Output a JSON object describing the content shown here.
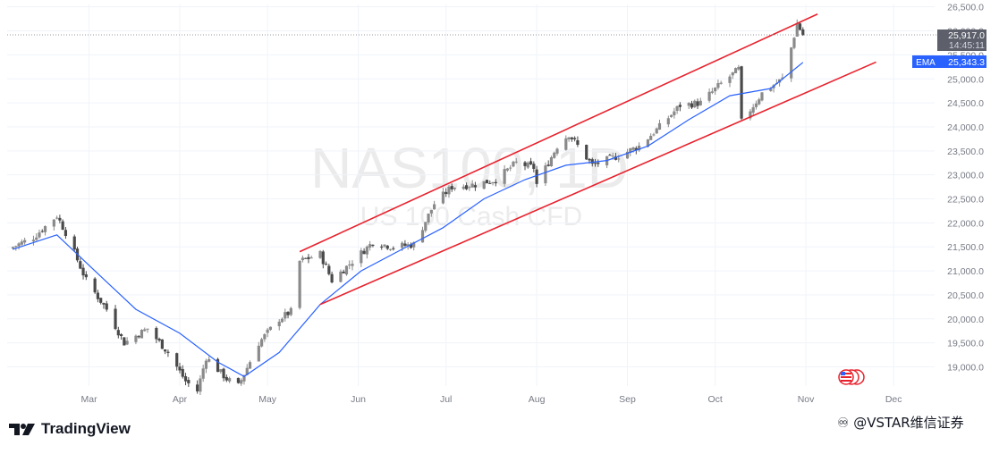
{
  "watermark": {
    "symbol": "NAS100, 1D",
    "description": "US 100 Cash CFD"
  },
  "branding": {
    "logo_text": "TradingView",
    "credit": "♾ @VSTAR维信证券"
  },
  "price_badge": {
    "price": "25,917.0",
    "countdown": "14:45:11"
  },
  "ema_badge": {
    "label": "EMA",
    "value": "25,343.3"
  },
  "colors": {
    "up": "#8a8a8a",
    "down": "#4a4a4a",
    "ema": "#2962ff",
    "channel": "#e8222d",
    "grid": "#f0f3fa",
    "axis_text": "#787b86",
    "price_badge": "#5d606b",
    "ema_badge": "#2962ff"
  },
  "chart_data": {
    "type": "candlestick",
    "symbol": "NAS100",
    "timeframe": "1D",
    "x_axis_labels": [
      "Mar",
      "Apr",
      "May",
      "Jun",
      "Jul",
      "Aug",
      "Sep",
      "Oct",
      "Nov",
      "Dec"
    ],
    "x_range": [
      "2025-02-01",
      "2025-12-15"
    ],
    "y_ticks": [
      19000,
      19500,
      20000,
      20500,
      21000,
      21500,
      22000,
      22500,
      23000,
      23500,
      24000,
      24500,
      25000,
      25500,
      26000,
      26500
    ],
    "y_tick_labels": [
      "19,000.0",
      "19,500.0",
      "20,000.0",
      "20,500.0",
      "21,000.0",
      "21,500.0",
      "22,000.0",
      "22,500.0",
      "23,000.0",
      "23,500.0",
      "24,000.0",
      "24,500.0",
      "25,000.0",
      "25,500.0",
      "26,000.0",
      "26,500.0"
    ],
    "ylim": [
      18600,
      26550
    ],
    "close_path": [
      [
        "2025-02-03",
        21500
      ],
      [
        "2025-02-10",
        21700
      ],
      [
        "2025-02-18",
        22150
      ],
      [
        "2025-02-21",
        21800
      ],
      [
        "2025-02-28",
        20800
      ],
      [
        "2025-03-07",
        20200
      ],
      [
        "2025-03-13",
        19500
      ],
      [
        "2025-03-21",
        19800
      ],
      [
        "2025-03-28",
        19300
      ],
      [
        "2025-04-03",
        18700
      ],
      [
        "2025-04-07",
        18500
      ],
      [
        "2025-04-10",
        19200
      ],
      [
        "2025-04-17",
        18750
      ],
      [
        "2025-04-21",
        18600
      ],
      [
        "2025-04-28",
        19500
      ],
      [
        "2025-05-05",
        20000
      ],
      [
        "2025-05-09",
        20150
      ],
      [
        "2025-05-12",
        21200
      ],
      [
        "2025-05-19",
        21350
      ],
      [
        "2025-05-23",
        20800
      ],
      [
        "2025-05-30",
        21200
      ],
      [
        "2025-06-06",
        21600
      ],
      [
        "2025-06-13",
        21500
      ],
      [
        "2025-06-20",
        21550
      ],
      [
        "2025-06-27",
        22400
      ],
      [
        "2025-07-03",
        22750
      ],
      [
        "2025-07-11",
        22800
      ],
      [
        "2025-07-18",
        22900
      ],
      [
        "2025-07-25",
        23250
      ],
      [
        "2025-07-31",
        23150
      ],
      [
        "2025-08-01",
        22800
      ],
      [
        "2025-08-08",
        23600
      ],
      [
        "2025-08-12",
        23850
      ],
      [
        "2025-08-20",
        23200
      ],
      [
        "2025-08-29",
        23400
      ],
      [
        "2025-09-05",
        23600
      ],
      [
        "2025-09-12",
        24000
      ],
      [
        "2025-09-19",
        24450
      ],
      [
        "2025-09-26",
        24500
      ],
      [
        "2025-10-03",
        24900
      ],
      [
        "2025-10-09",
        25200
      ],
      [
        "2025-10-10",
        24100
      ],
      [
        "2025-10-17",
        24700
      ],
      [
        "2025-10-24",
        25000
      ],
      [
        "2025-10-27",
        25650
      ],
      [
        "2025-10-29",
        26150
      ],
      [
        "2025-10-31",
        25917
      ]
    ],
    "ema_path": [
      [
        "2025-02-03",
        21450
      ],
      [
        "2025-02-18",
        21750
      ],
      [
        "2025-03-03",
        21000
      ],
      [
        "2025-03-17",
        20200
      ],
      [
        "2025-04-01",
        19700
      ],
      [
        "2025-04-14",
        19100
      ],
      [
        "2025-04-23",
        18800
      ],
      [
        "2025-05-05",
        19300
      ],
      [
        "2025-05-19",
        20300
      ],
      [
        "2025-06-02",
        21000
      ],
      [
        "2025-06-16",
        21450
      ],
      [
        "2025-06-30",
        21900
      ],
      [
        "2025-07-14",
        22500
      ],
      [
        "2025-07-28",
        22900
      ],
      [
        "2025-08-11",
        23200
      ],
      [
        "2025-08-25",
        23300
      ],
      [
        "2025-09-08",
        23600
      ],
      [
        "2025-09-22",
        24150
      ],
      [
        "2025-10-06",
        24650
      ],
      [
        "2025-10-20",
        24800
      ],
      [
        "2025-10-31",
        25343
      ]
    ],
    "channel_lines": [
      {
        "name": "upper",
        "from": [
          "2025-05-12",
          21400
        ],
        "to": [
          "2025-11-05",
          26350
        ]
      },
      {
        "name": "lower",
        "from": [
          "2025-05-19",
          20300
        ],
        "to": [
          "2025-11-25",
          25350
        ]
      }
    ],
    "last_price": 25917.0,
    "ema_value": 25343.3
  }
}
